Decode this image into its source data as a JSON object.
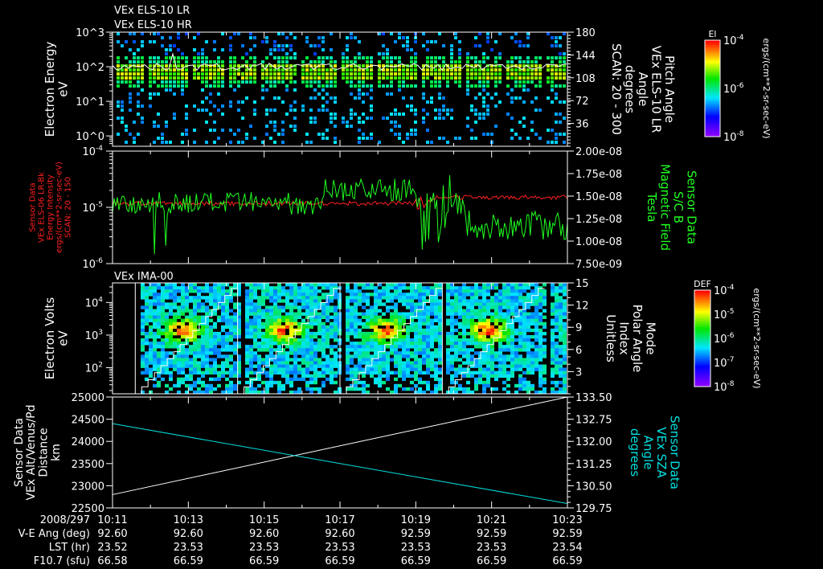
{
  "header": {
    "title1": "VEx ELS-10 LR",
    "title2": "VEx ELS-10 HR"
  },
  "chart_data": [
    {
      "type": "heatmap",
      "name": "ELS-10 electron energy spectrogram",
      "ylabel": [
        "Electron Energy",
        "eV"
      ],
      "yticks_log": [
        "10^0",
        "10^1",
        "10^2",
        "10^3"
      ],
      "yticks": [
        {
          "base": "10",
          "exp": "0"
        },
        {
          "base": "10",
          "exp": "1"
        },
        {
          "base": "10",
          "exp": "2"
        },
        {
          "base": "10",
          "exp": "3"
        }
      ],
      "ylim_log10": [
        -0.3,
        3
      ],
      "right_axis": {
        "label": [
          "Pitch Angle",
          "VEx ELS-10 LR",
          "Angle",
          "degrees",
          "SCAN: 20 - 300"
        ],
        "ticks": [
          "36",
          "72",
          "108",
          "144",
          "180"
        ],
        "range": [
          0,
          180
        ]
      },
      "colorbar": {
        "title": "El",
        "ticks": [
          "10^-4",
          "10^-6",
          "10^-8"
        ],
        "tick_parts": [
          {
            "exp": "-4"
          },
          {
            "exp": "-6"
          },
          {
            "exp": "-8"
          }
        ],
        "unit": "ergs/(cm**2-sr-sec-eV)",
        "range_log10": [
          -8,
          -3
        ]
      },
      "band_center_log10": 1.85
    },
    {
      "type": "line",
      "name": "ELS-06 energy intensity and magnetic field",
      "left_axis": {
        "label": [
          "Sensor Data",
          "VEx ELS-06 LR-Bk",
          "Energy Intensity",
          "ergs/(cm**2-sr-sec-eV)",
          "SCAN: 20 - 150"
        ],
        "ticks": [
          {
            "exp": "-4"
          },
          {
            "exp": "-5"
          },
          {
            "exp": "-6"
          }
        ],
        "range_log10": [
          -6,
          -4
        ],
        "color": "#ff2020"
      },
      "right_axis": {
        "label": [
          "Sensor Data",
          "S/C B",
          "Magnetic Field",
          "Tesla"
        ],
        "ticks": [
          "2.00e-08",
          "1.75e-08",
          "1.50e-08",
          "1.25e-08",
          "1.00e-08",
          "7.50e-09"
        ],
        "range": [
          7.5e-09,
          2e-08
        ],
        "color": "#20ff20"
      },
      "series": [
        {
          "name": "Energy Intensity",
          "color": "#ff2020",
          "x_min": [
            0,
            2,
            4,
            6,
            8,
            9,
            10,
            12
          ],
          "y_log10": [
            -5.05,
            -4.88,
            -4.95,
            -4.9,
            -4.95,
            -4.95,
            -4.82,
            -4.8
          ]
        },
        {
          "name": "Magnetic Field",
          "color": "#20ff20",
          "x_min": [
            0,
            1,
            2,
            4,
            6,
            8,
            8.5,
            9,
            10,
            12
          ],
          "y": [
            1.4e-08,
            1.3e-08,
            1.55e-08,
            1.45e-08,
            1.45e-08,
            1.6e-08,
            1.25e-08,
            1.5e-08,
            1.1e-08,
            1.15e-08
          ]
        }
      ]
    },
    {
      "type": "heatmap",
      "name": "IMA-00 ion spectrogram",
      "title": "VEx IMA-00",
      "ylabel": [
        "Electron Volts",
        "eV"
      ],
      "yticks": [
        {
          "exp": "2"
        },
        {
          "exp": "3"
        },
        {
          "exp": "4"
        }
      ],
      "ylim_log10": [
        1.2,
        4.6
      ],
      "right_axis": {
        "label": [
          "Mode",
          "Polar Angle",
          "Index",
          "Unitless"
        ],
        "ticks": [
          "3",
          "6",
          "9",
          "12",
          "15"
        ],
        "range": [
          0,
          15
        ]
      },
      "colorbar": {
        "title": "DEF",
        "ticks": [
          {
            "exp": "-4"
          },
          {
            "exp": "-5"
          },
          {
            "exp": "-6"
          },
          {
            "exp": "-7"
          },
          {
            "exp": "-8"
          }
        ],
        "unit": "ergs/(cm**2-sr-sec-eV)",
        "range_log10": [
          -8,
          -4
        ]
      },
      "scan_starts_min": [
        0.6,
        3.3,
        6.0,
        8.7
      ]
    },
    {
      "type": "line",
      "name": "Altitude and SZA",
      "left_axis": {
        "label": [
          "Sensor Data",
          "VEx Alt/Venus/Pd",
          "Distance",
          "km"
        ],
        "ticks": [
          "25000",
          "24500",
          "24000",
          "23500",
          "23000",
          "22500"
        ],
        "range": [
          22500,
          25000
        ]
      },
      "right_axis": {
        "label": [
          "Sensor Data",
          "VEx SZA",
          "Angle",
          "degrees"
        ],
        "ticks": [
          "133.50",
          "132.75",
          "132.00",
          "131.25",
          "130.50",
          "129.75"
        ],
        "range": [
          129.75,
          133.5
        ],
        "color": "#00e0e0"
      },
      "series": [
        {
          "name": "Altitude",
          "color": "#ffffff",
          "x_min": [
            0,
            12
          ],
          "y": [
            22800,
            25000
          ]
        },
        {
          "name": "SZA",
          "color": "#00e0e0",
          "x_min": [
            0,
            12
          ],
          "y": [
            132.6,
            129.9
          ]
        }
      ]
    }
  ],
  "time_axis": {
    "date": "2008/297",
    "ticks": [
      "10:11",
      "10:13",
      "10:15",
      "10:17",
      "10:19",
      "10:21",
      "10:23"
    ],
    "rows": [
      {
        "label": "V-E Ang (deg)",
        "values": [
          "92.60",
          "92.60",
          "92.60",
          "92.60",
          "92.59",
          "92.59",
          "92.59"
        ]
      },
      {
        "label": "LST (hr)",
        "values": [
          "23.52",
          "23.53",
          "23.53",
          "23.53",
          "23.53",
          "23.53",
          "23.54"
        ]
      },
      {
        "label": "F10.7 (sfu)",
        "values": [
          "66.58",
          "66.59",
          "66.59",
          "66.59",
          "66.59",
          "66.59",
          "66.59"
        ]
      }
    ]
  }
}
